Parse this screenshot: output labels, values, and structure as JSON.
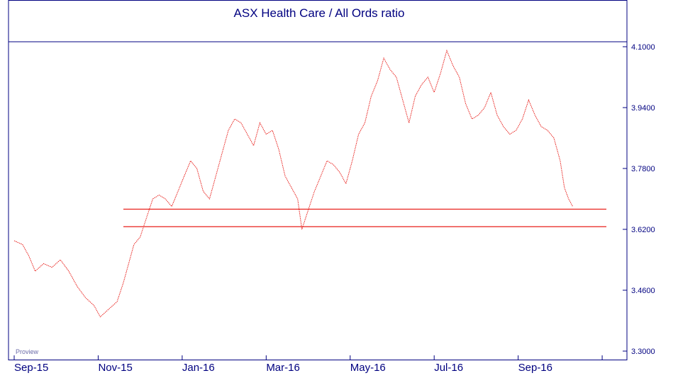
{
  "chart_data": {
    "type": "line",
    "title": "ASX Health Care / All Ords ratio",
    "watermark": "Proview",
    "ylim": [
      3.3,
      4.12
    ],
    "y_ticks": [
      "4.1000",
      "3.9400",
      "3.7800",
      "3.6200",
      "3.4600",
      "3.3000"
    ],
    "y_tick_values": [
      4.1,
      3.94,
      3.78,
      3.62,
      3.46,
      3.3
    ],
    "x_tick_labels": [
      "Sep-15",
      "Nov-15",
      "Jan-16",
      "Mar-16",
      "May-16",
      "Jul-16",
      "Sep-16"
    ],
    "x_tick_months": [
      0,
      2,
      4,
      6,
      8,
      10,
      12
    ],
    "x_range_months": [
      0,
      14.1
    ],
    "grid": false,
    "line_color": "#e8201c",
    "axis_color": "#000080",
    "series": [
      {
        "values": [
          [
            0.0,
            3.59
          ],
          [
            0.2,
            3.58
          ],
          [
            0.35,
            3.55
          ],
          [
            0.5,
            3.51
          ],
          [
            0.7,
            3.53
          ],
          [
            0.9,
            3.52
          ],
          [
            1.1,
            3.54
          ],
          [
            1.3,
            3.51
          ],
          [
            1.5,
            3.47
          ],
          [
            1.7,
            3.44
          ],
          [
            1.9,
            3.42
          ],
          [
            2.05,
            3.39
          ],
          [
            2.25,
            3.41
          ],
          [
            2.45,
            3.43
          ],
          [
            2.6,
            3.48
          ],
          [
            2.75,
            3.54
          ],
          [
            2.85,
            3.58
          ],
          [
            3.0,
            3.6
          ],
          [
            3.15,
            3.65
          ],
          [
            3.3,
            3.7
          ],
          [
            3.45,
            3.71
          ],
          [
            3.6,
            3.7
          ],
          [
            3.75,
            3.68
          ],
          [
            3.9,
            3.72
          ],
          [
            4.05,
            3.76
          ],
          [
            4.2,
            3.8
          ],
          [
            4.35,
            3.78
          ],
          [
            4.5,
            3.72
          ],
          [
            4.65,
            3.7
          ],
          [
            4.8,
            3.76
          ],
          [
            4.95,
            3.82
          ],
          [
            5.1,
            3.88
          ],
          [
            5.25,
            3.91
          ],
          [
            5.4,
            3.9
          ],
          [
            5.55,
            3.87
          ],
          [
            5.7,
            3.84
          ],
          [
            5.85,
            3.9
          ],
          [
            6.0,
            3.87
          ],
          [
            6.15,
            3.88
          ],
          [
            6.3,
            3.83
          ],
          [
            6.45,
            3.76
          ],
          [
            6.6,
            3.73
          ],
          [
            6.75,
            3.7
          ],
          [
            6.85,
            3.62
          ],
          [
            7.0,
            3.67
          ],
          [
            7.15,
            3.72
          ],
          [
            7.3,
            3.76
          ],
          [
            7.45,
            3.8
          ],
          [
            7.6,
            3.79
          ],
          [
            7.75,
            3.77
          ],
          [
            7.9,
            3.74
          ],
          [
            8.05,
            3.8
          ],
          [
            8.2,
            3.87
          ],
          [
            8.35,
            3.9
          ],
          [
            8.5,
            3.97
          ],
          [
            8.65,
            4.01
          ],
          [
            8.8,
            4.07
          ],
          [
            8.95,
            4.04
          ],
          [
            9.1,
            4.02
          ],
          [
            9.25,
            3.96
          ],
          [
            9.4,
            3.9
          ],
          [
            9.55,
            3.97
          ],
          [
            9.7,
            4.0
          ],
          [
            9.85,
            4.02
          ],
          [
            10.0,
            3.98
          ],
          [
            10.15,
            4.03
          ],
          [
            10.3,
            4.09
          ],
          [
            10.45,
            4.05
          ],
          [
            10.6,
            4.02
          ],
          [
            10.75,
            3.95
          ],
          [
            10.9,
            3.91
          ],
          [
            11.05,
            3.92
          ],
          [
            11.2,
            3.94
          ],
          [
            11.35,
            3.98
          ],
          [
            11.5,
            3.92
          ],
          [
            11.65,
            3.89
          ],
          [
            11.8,
            3.87
          ],
          [
            11.95,
            3.88
          ],
          [
            12.1,
            3.91
          ],
          [
            12.25,
            3.96
          ],
          [
            12.4,
            3.92
          ],
          [
            12.55,
            3.89
          ],
          [
            12.7,
            3.88
          ],
          [
            12.85,
            3.86
          ],
          [
            13.0,
            3.8
          ],
          [
            13.1,
            3.73
          ],
          [
            13.2,
            3.7
          ],
          [
            13.3,
            3.68
          ]
        ]
      }
    ],
    "horizontal_lines": [
      {
        "value": 3.673,
        "x_from": 2.6,
        "x_to": 14.1
      },
      {
        "value": 3.627,
        "x_from": 2.6,
        "x_to": 14.1
      }
    ]
  }
}
